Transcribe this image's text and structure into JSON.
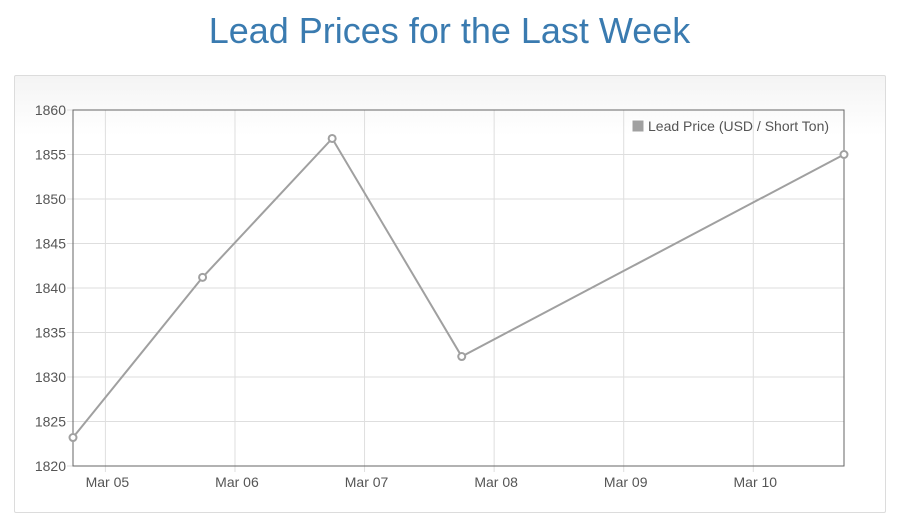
{
  "title": "Lead Prices for the Last Week",
  "colors": {
    "title": "#3a7bb0",
    "series": "#a0a0a0",
    "grid": "#dedede",
    "axis": "#666666"
  },
  "chart_data": {
    "type": "line",
    "title": "Lead Prices for the Last Week",
    "xlabel": "",
    "ylabel": "",
    "x_tick_labels": [
      "Mar 05",
      "Mar 06",
      "Mar 07",
      "Mar 08",
      "Mar 09",
      "Mar 10"
    ],
    "y_ticks": [
      1820,
      1825,
      1830,
      1835,
      1840,
      1845,
      1850,
      1855,
      1860
    ],
    "ylim": [
      1820,
      1860
    ],
    "xlim_days": [
      4.75,
      10.7
    ],
    "grid": true,
    "legend": "top-right",
    "series": [
      {
        "name": "Lead Price (USD / Short Ton)",
        "x_days": [
          4.75,
          5.75,
          6.75,
          7.75,
          10.7
        ],
        "values": [
          1823.2,
          1841.2,
          1856.8,
          1832.3,
          1855.0
        ]
      }
    ]
  }
}
